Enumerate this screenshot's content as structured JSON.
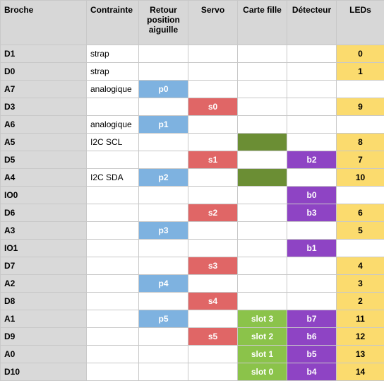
{
  "colors": {
    "retour": "#7eb2e0",
    "servo": "#e06666",
    "carte_dark": "#6b8e34",
    "carte_light": "#8bc34a",
    "detecteur": "#8e44c4",
    "leds": "#fbdb6e",
    "broche_bg": "#d9d9d9",
    "header_bg": "#d7d7d7"
  },
  "header": {
    "broche": "Broche",
    "contrainte": "Contrainte",
    "retour": "Retour position aiguille",
    "servo": "Servo",
    "carte": "Carte fille",
    "detecteur": "Détecteur",
    "leds": "LEDs"
  },
  "rows": [
    {
      "broche": "D1",
      "contrainte": "strap",
      "retour": "",
      "servo": "",
      "carte": "",
      "carte_fill": "",
      "detecteur": "",
      "leds": "0"
    },
    {
      "broche": "D0",
      "contrainte": "strap",
      "retour": "",
      "servo": "",
      "carte": "",
      "carte_fill": "",
      "detecteur": "",
      "leds": "1"
    },
    {
      "broche": "A7",
      "contrainte": "analogique",
      "retour": "p0",
      "servo": "",
      "carte": "",
      "carte_fill": "",
      "detecteur": "",
      "leds": ""
    },
    {
      "broche": "D3",
      "contrainte": "",
      "retour": "",
      "servo": "s0",
      "carte": "",
      "carte_fill": "",
      "detecteur": "",
      "leds": "9"
    },
    {
      "broche": "A6",
      "contrainte": "analogique",
      "retour": "p1",
      "servo": "",
      "carte": "",
      "carte_fill": "",
      "detecteur": "",
      "leds": ""
    },
    {
      "broche": "A5",
      "contrainte": "I2C SCL",
      "retour": "",
      "servo": "",
      "carte": "",
      "carte_fill": "dark",
      "detecteur": "",
      "leds": "8"
    },
    {
      "broche": "D5",
      "contrainte": "",
      "retour": "",
      "servo": "s1",
      "carte": "",
      "carte_fill": "",
      "detecteur": "b2",
      "leds": "7"
    },
    {
      "broche": "A4",
      "contrainte": "I2C SDA",
      "retour": "p2",
      "servo": "",
      "carte": "",
      "carte_fill": "dark",
      "detecteur": "",
      "leds": "10"
    },
    {
      "broche": "IO0",
      "contrainte": "",
      "retour": "",
      "servo": "",
      "carte": "",
      "carte_fill": "",
      "detecteur": "b0",
      "leds": ""
    },
    {
      "broche": "D6",
      "contrainte": "",
      "retour": "",
      "servo": "s2",
      "carte": "",
      "carte_fill": "",
      "detecteur": "b3",
      "leds": "6"
    },
    {
      "broche": "A3",
      "contrainte": "",
      "retour": "p3",
      "servo": "",
      "carte": "",
      "carte_fill": "",
      "detecteur": "",
      "leds": "5"
    },
    {
      "broche": "IO1",
      "contrainte": "",
      "retour": "",
      "servo": "",
      "carte": "",
      "carte_fill": "",
      "detecteur": "b1",
      "leds": ""
    },
    {
      "broche": "D7",
      "contrainte": "",
      "retour": "",
      "servo": "s3",
      "carte": "",
      "carte_fill": "",
      "detecteur": "",
      "leds": "4"
    },
    {
      "broche": "A2",
      "contrainte": "",
      "retour": "p4",
      "servo": "",
      "carte": "",
      "carte_fill": "",
      "detecteur": "",
      "leds": "3"
    },
    {
      "broche": "D8",
      "contrainte": "",
      "retour": "",
      "servo": "s4",
      "carte": "",
      "carte_fill": "",
      "detecteur": "",
      "leds": "2"
    },
    {
      "broche": "A1",
      "contrainte": "",
      "retour": "p5",
      "servo": "",
      "carte": "slot 3",
      "carte_fill": "light",
      "detecteur": "b7",
      "leds": "11"
    },
    {
      "broche": "D9",
      "contrainte": "",
      "retour": "",
      "servo": "s5",
      "carte": "slot 2",
      "carte_fill": "light",
      "detecteur": "b6",
      "leds": "12"
    },
    {
      "broche": "A0",
      "contrainte": "",
      "retour": "",
      "servo": "",
      "carte": "slot 1",
      "carte_fill": "light",
      "detecteur": "b5",
      "leds": "13"
    },
    {
      "broche": "D10",
      "contrainte": "",
      "retour": "",
      "servo": "",
      "carte": "slot 0",
      "carte_fill": "light",
      "detecteur": "b4",
      "leds": "14"
    }
  ]
}
